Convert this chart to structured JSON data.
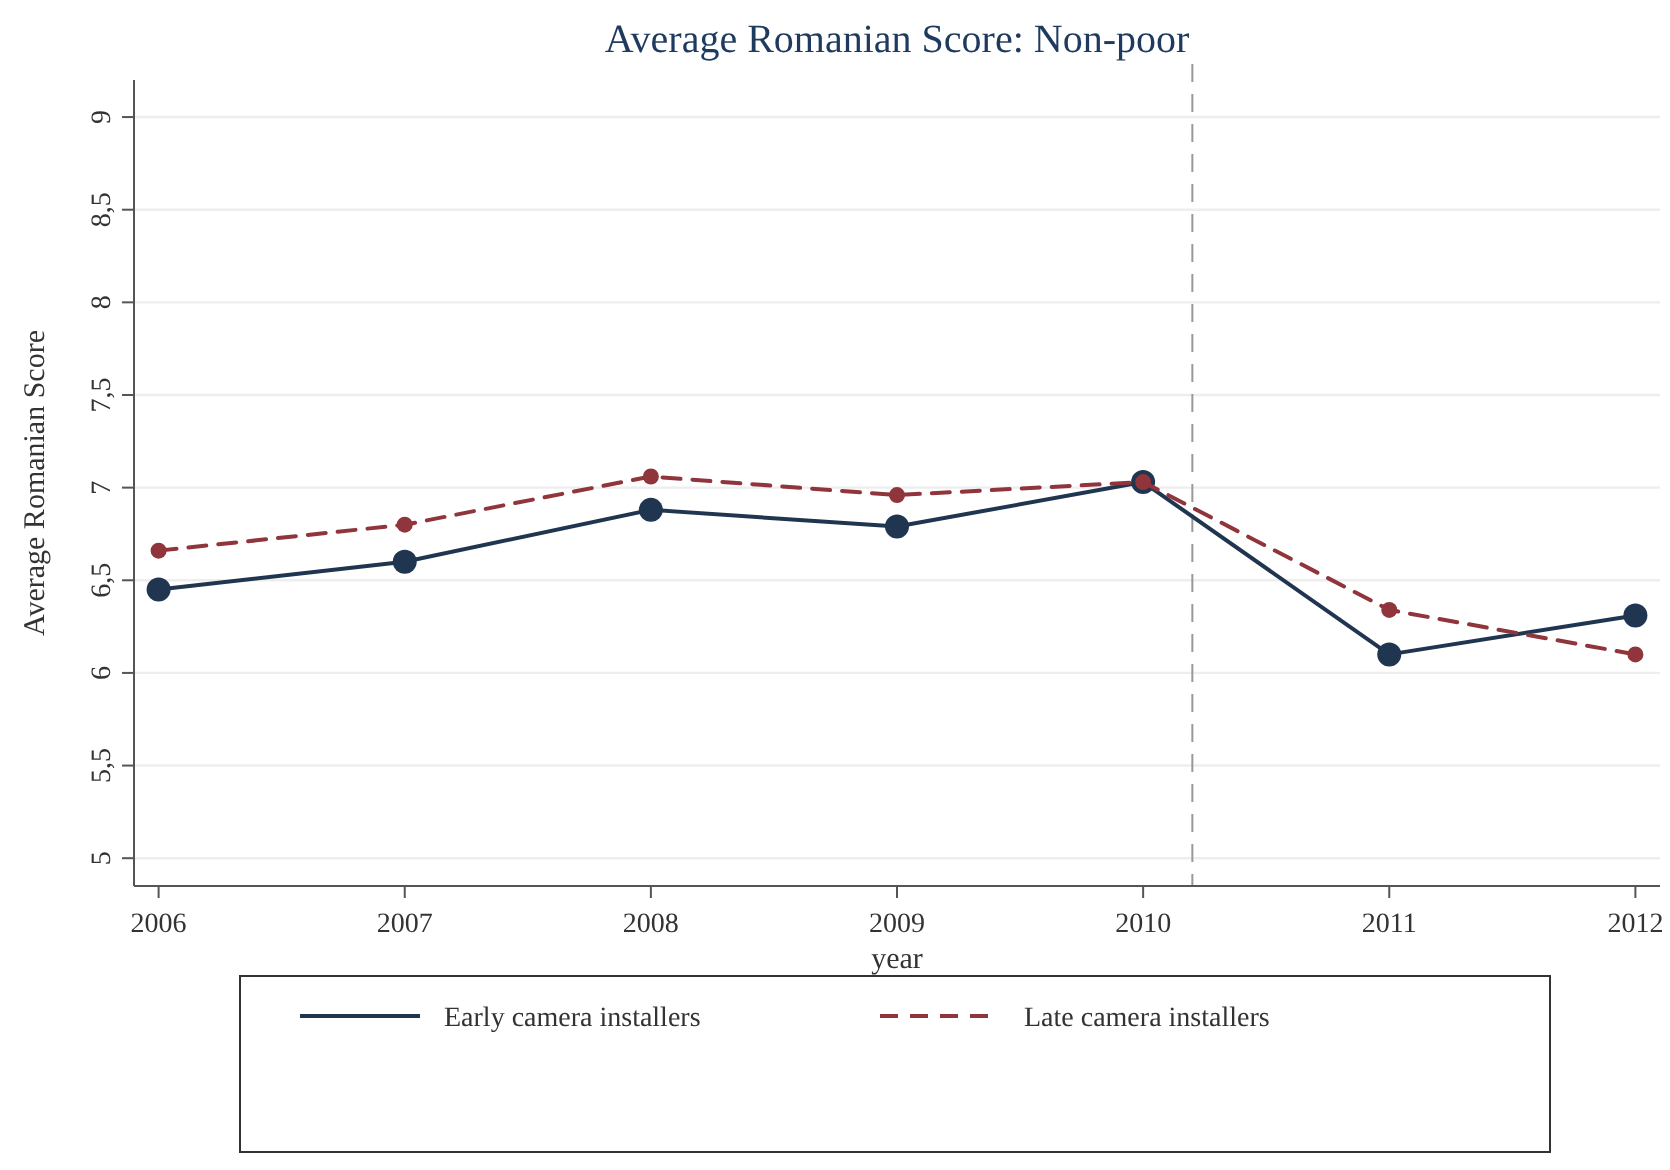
{
  "chart_data": {
    "type": "line",
    "title": "Average Romanian Score: Non-poor",
    "xlabel": "year",
    "ylabel": "Average Romanian Score",
    "x": [
      2006,
      2007,
      2008,
      2009,
      2010,
      2011,
      2012
    ],
    "xlim": [
      2005.9,
      2012.1
    ],
    "xticks": [
      2006,
      2007,
      2008,
      2009,
      2010,
      2011,
      2012
    ],
    "ylim": [
      4.85,
      9.2
    ],
    "yticks": [
      5,
      {
        "value": 5.5,
        "label": "5,5"
      },
      6,
      {
        "value": 6.5,
        "label": "6,5"
      },
      7,
      {
        "value": 7.5,
        "label": "7,5"
      },
      8,
      {
        "value": 8.5,
        "label": "8,5"
      },
      9
    ],
    "grid": "y",
    "legend": "bottom",
    "marker": "circle",
    "ref_lines": [
      {
        "axis": "x",
        "value": 2010.2,
        "color": "#999999",
        "line_style": "dashed"
      }
    ],
    "series": [
      {
        "name": "Early camera installers",
        "color": "#1f3550",
        "line_style": "solid",
        "values": [
          6.45,
          6.6,
          6.88,
          6.79,
          7.03,
          6.1,
          6.31
        ]
      },
      {
        "name": "Late camera installers",
        "color": "#90353b",
        "line_style": "dashed",
        "values": [
          6.66,
          6.8,
          7.06,
          6.96,
          7.03,
          6.34,
          6.1
        ]
      }
    ]
  }
}
